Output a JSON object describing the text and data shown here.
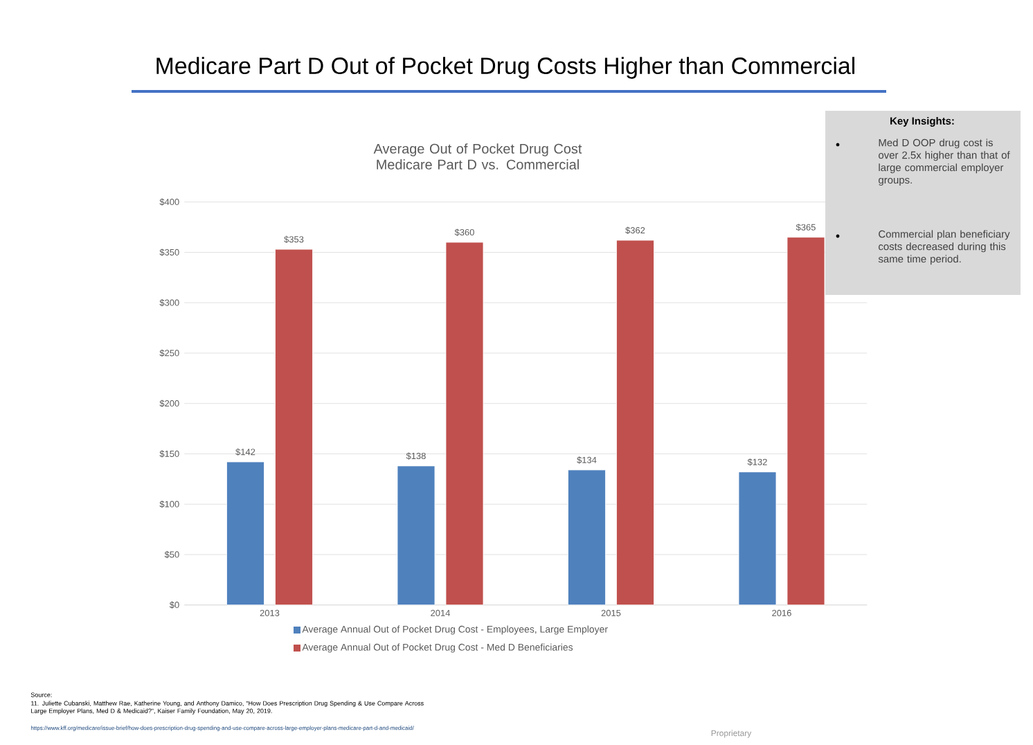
{
  "chart_data": {
    "type": "bar",
    "title": "Medicare Part D Out of Pocket Drug Costs Higher than Commercial",
    "subtitle": "Average Out of Pocket Drug Cost Medicare Part D vs. Commercial",
    "categories": [
      "2013",
      "2014",
      "2015",
      "2016"
    ],
    "series": [
      {
        "name": "Average Annual Out of Pocket Drug Cost - Employees, Large Employer",
        "color": "#4f81bd",
        "values": [
          142,
          138,
          134,
          132
        ],
        "value_labels": [
          "$142",
          "$138",
          "$134",
          "$132"
        ]
      },
      {
        "name": "Average Annual Out of Pocket Drug Cost - Med D Beneficiaries",
        "color": "#c0504d",
        "values": [
          353,
          360,
          362,
          365
        ],
        "value_labels": [
          "$353",
          "$360",
          "$362",
          "$365"
        ]
      }
    ],
    "ylim": [
      0,
      400
    ],
    "yticks": [
      {
        "value": 0,
        "label": "$0"
      },
      {
        "value": 50,
        "label": "$50"
      },
      {
        "value": 100,
        "label": "$100"
      },
      {
        "value": 150,
        "label": "$150"
      },
      {
        "value": 200,
        "label": "$200"
      },
      {
        "value": 250,
        "label": "$250"
      },
      {
        "value": 300,
        "label": "$300"
      },
      {
        "value": 350,
        "label": "$350"
      },
      {
        "value": 400,
        "label": "$400"
      }
    ],
    "grid": "y",
    "legend": "bottom",
    "annotations": [
      "Key Insights:",
      "Med D OOP drug cost is over 2.5x higher than that of large commercial employer groups.",
      "Commercial plan beneficiary costs decreased during this same time period.",
      "Source:",
      "11. Juliette Cubanski, Matthew Rae, Katherine Young, and Anthony Damico, \"How Does Prescription Drug Spending & Use Compare Across Large Employer Plans, Med D & Medicaid?\", Kaiser Family Foundation, May 20, 2019.",
      "https://www.kff.org/medicare/issue-brief/how-does-prescription-drug-spending-and-use-compare-across-large-employer-plans-medicare-part-d-and-medicaid/",
      "Proprietary"
    ]
  }
}
